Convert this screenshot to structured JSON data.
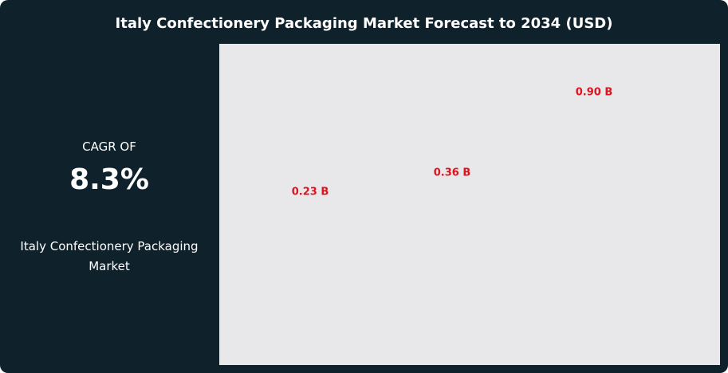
{
  "panel": {
    "cagr_label": "CAGR OF",
    "cagr_value": "8.3%",
    "market": "Italy Confectionery Packaging Market"
  },
  "chart_data": {
    "type": "bar",
    "title": "Italy Confectionery Packaging Market Forecast to 2034 (USD)",
    "categories": [
      null,
      null,
      null
    ],
    "values": [
      0.23,
      0.36,
      0.9
    ],
    "value_labels": [
      "0.23 B",
      "0.36 B",
      "0.90 B"
    ],
    "label_color": "#e0121e"
  }
}
